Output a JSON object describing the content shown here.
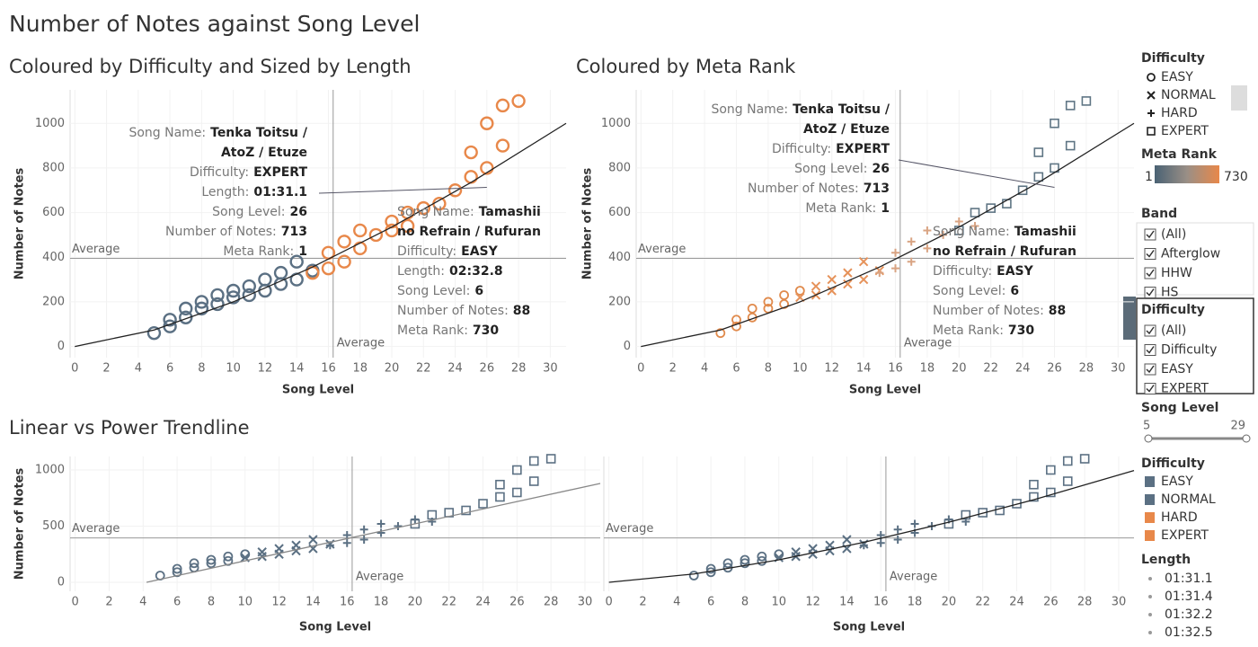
{
  "title": "Number of Notes against Song Level",
  "chart_data": [
    {
      "type": "scatter",
      "title": "Coloured by Difficulty and Sized by Length",
      "x_label": "Song Level",
      "y_label": "Number of Notes",
      "xlim": [
        -0.3,
        31
      ],
      "ylim": [
        -50,
        1150
      ],
      "xticks": [
        0,
        2,
        4,
        6,
        8,
        10,
        12,
        14,
        16,
        18,
        20,
        22,
        24,
        26,
        28,
        30
      ],
      "yticks": [
        0,
        200,
        400,
        600,
        800,
        1000
      ],
      "average": {
        "x": 16.3,
        "y": 395,
        "label": "Average"
      },
      "trendline": {
        "x": [
          0,
          5,
          10,
          15,
          20,
          25,
          31
        ],
        "y": [
          0,
          74,
          200,
          356,
          535,
          735,
          1000
        ]
      },
      "marker_style": "hollow-circle",
      "tooltips": [
        {
          "rows": [
            {
              "label": "Song Name:",
              "value": "Tenka Toitsu /"
            },
            {
              "value": "AtoZ / Etuze"
            },
            {
              "label": "Difficulty:",
              "value": "EXPERT"
            },
            {
              "label": "Length:",
              "value": "01:31.1"
            },
            {
              "label": "Song Level:",
              "value": 26
            },
            {
              "label": "Number of Notes:",
              "value": 713
            },
            {
              "label": "Meta Rank:",
              "value": 1
            }
          ]
        },
        {
          "rows": [
            {
              "label": "Song Name:",
              "value": "Tamashii"
            },
            {
              "value": "no Refrain / Rufuran"
            },
            {
              "label": "Difficulty:",
              "value": "EASY"
            },
            {
              "label": "Length:",
              "value": "02:32.8"
            },
            {
              "label": "Song Level:",
              "value": 6
            },
            {
              "label": "Number of Notes:",
              "value": 88
            },
            {
              "label": "Meta Rank:",
              "value": 730
            }
          ]
        }
      ],
      "series": [
        {
          "name": "EASY",
          "color": "#5b7083",
          "marker": "circle",
          "x": [
            5,
            6,
            6,
            7,
            7,
            8,
            8,
            9,
            9,
            10
          ],
          "values": [
            60,
            90,
            120,
            130,
            170,
            170,
            200,
            190,
            230,
            250
          ]
        },
        {
          "name": "NORMAL",
          "color": "#5b7083",
          "marker": "x",
          "x": [
            10,
            11,
            11,
            12,
            12,
            13,
            13,
            14,
            14,
            15
          ],
          "values": [
            220,
            230,
            270,
            250,
            300,
            280,
            330,
            300,
            380,
            340
          ]
        },
        {
          "name": "HARD",
          "color": "#e8884a",
          "marker": "plus",
          "x": [
            15,
            16,
            16,
            17,
            17,
            18,
            18,
            19,
            20,
            21
          ],
          "values": [
            330,
            350,
            420,
            380,
            470,
            440,
            520,
            500,
            560,
            540
          ]
        },
        {
          "name": "EXPERT",
          "color": "#e8884a",
          "marker": "square",
          "x": [
            20,
            21,
            22,
            23,
            24,
            25,
            25,
            26,
            26,
            27,
            27,
            28
          ],
          "values": [
            520,
            600,
            620,
            640,
            700,
            760,
            870,
            800,
            1000,
            900,
            1080,
            1100
          ]
        }
      ]
    },
    {
      "type": "scatter",
      "title": "Coloured by Meta Rank",
      "x_label": "Song Level",
      "y_label": "Number of Notes",
      "xlim": [
        -0.3,
        31
      ],
      "ylim": [
        -50,
        1150
      ],
      "xticks": [
        0,
        2,
        4,
        6,
        8,
        10,
        12,
        14,
        16,
        18,
        20,
        22,
        24,
        26,
        28,
        30
      ],
      "yticks": [
        0,
        200,
        400,
        600,
        800,
        1000
      ],
      "average": {
        "x": 16.3,
        "y": 395,
        "label": "Average"
      },
      "trendline": {
        "x": [
          0,
          5,
          10,
          15,
          20,
          25,
          31
        ],
        "y": [
          0,
          74,
          200,
          356,
          535,
          735,
          1000
        ]
      },
      "marker_style": "shape",
      "tooltips": [
        {
          "rows": [
            {
              "label": "Song Name:",
              "value": "Tenka Toitsu /"
            },
            {
              "value": "AtoZ / Etuze"
            },
            {
              "label": "Difficulty:",
              "value": "EXPERT"
            },
            {
              "label": "Song Level:",
              "value": 26
            },
            {
              "label": "Number of Notes:",
              "value": 713
            },
            {
              "label": "Meta Rank:",
              "value": 1
            }
          ]
        },
        {
          "rows": [
            {
              "label": "Song Name:",
              "value": "Tamashii"
            },
            {
              "value": "no Refrain / Rufuran"
            },
            {
              "label": "Difficulty:",
              "value": "EASY"
            },
            {
              "label": "Song Level:",
              "value": 6
            },
            {
              "label": "Number of Notes:",
              "value": 88
            },
            {
              "label": "Meta Rank:",
              "value": 730
            }
          ]
        }
      ],
      "series": [
        {
          "name": "EASY",
          "color": "#e08a4c",
          "marker": "circle",
          "x": [
            5,
            6,
            6,
            7,
            7,
            8,
            8,
            9,
            9,
            10
          ],
          "values": [
            60,
            90,
            120,
            130,
            170,
            170,
            200,
            190,
            230,
            250
          ]
        },
        {
          "name": "NORMAL",
          "color": "#e6925a",
          "marker": "x",
          "x": [
            10,
            11,
            11,
            12,
            12,
            13,
            13,
            14,
            14,
            15
          ],
          "values": [
            220,
            230,
            270,
            250,
            300,
            280,
            330,
            300,
            380,
            340
          ]
        },
        {
          "name": "HARD",
          "color": "#d9a483",
          "marker": "plus",
          "x": [
            15,
            16,
            16,
            17,
            17,
            18,
            18,
            19,
            20,
            21
          ],
          "values": [
            330,
            350,
            420,
            380,
            470,
            440,
            520,
            500,
            560,
            540
          ]
        },
        {
          "name": "EXPERT",
          "color": "#5f7584",
          "marker": "square",
          "x": [
            20,
            21,
            22,
            23,
            24,
            25,
            25,
            26,
            26,
            27,
            27,
            28
          ],
          "values": [
            520,
            600,
            620,
            640,
            700,
            760,
            870,
            800,
            1000,
            900,
            1080,
            1100
          ]
        }
      ]
    },
    {
      "type": "scatter",
      "title": "Linear vs Power Trendline",
      "x_label": "Song Level",
      "y_label": "Number of Notes",
      "xlim": [
        -0.3,
        30.9
      ],
      "ylim": [
        -80,
        1120
      ],
      "xticks": [
        0,
        2,
        4,
        6,
        8,
        10,
        12,
        14,
        16,
        18,
        20,
        22,
        24,
        26,
        28,
        30
      ],
      "yticks": [
        0,
        500,
        1000
      ],
      "average": {
        "x": 16.3,
        "y": 395,
        "label": "Average"
      },
      "trendline": {
        "x": [
          4.2,
          30.9
        ],
        "y": [
          0,
          880
        ]
      },
      "marker_style": "shape",
      "series": [
        {
          "color": "#5b7083",
          "marker": "circle",
          "x": [
            5,
            6,
            6,
            7,
            7,
            8,
            8,
            9,
            9,
            10
          ],
          "values": [
            60,
            90,
            120,
            130,
            170,
            170,
            200,
            190,
            230,
            250
          ]
        },
        {
          "color": "#5b7083",
          "marker": "x",
          "x": [
            10,
            11,
            11,
            12,
            12,
            13,
            13,
            14,
            14,
            15
          ],
          "values": [
            220,
            230,
            270,
            250,
            300,
            280,
            330,
            300,
            380,
            340
          ]
        },
        {
          "color": "#5b7083",
          "marker": "plus",
          "x": [
            15,
            16,
            16,
            17,
            17,
            18,
            18,
            19,
            20,
            21
          ],
          "values": [
            330,
            350,
            420,
            380,
            470,
            440,
            520,
            500,
            560,
            540
          ]
        },
        {
          "color": "#5b7083",
          "marker": "square",
          "x": [
            20,
            21,
            22,
            23,
            24,
            25,
            25,
            26,
            26,
            27,
            27,
            28
          ],
          "values": [
            520,
            600,
            620,
            640,
            700,
            760,
            870,
            800,
            1000,
            900,
            1080,
            1100
          ]
        }
      ]
    },
    {
      "type": "scatter",
      "x_label": "Song Level",
      "xlim": [
        -0.3,
        30.9
      ],
      "ylim": [
        -80,
        1120
      ],
      "xticks": [
        0,
        2,
        4,
        6,
        8,
        10,
        12,
        14,
        16,
        18,
        20,
        22,
        24,
        26,
        28,
        30
      ],
      "average": {
        "x": 16.3,
        "y": 395,
        "label": "Average"
      },
      "trendline": {
        "x": [
          0,
          5,
          10,
          15,
          20,
          25,
          30.9
        ],
        "y": [
          0,
          74,
          200,
          356,
          535,
          735,
          995
        ]
      },
      "marker_style": "shape",
      "series": [
        {
          "color": "#5b7083",
          "marker": "circle",
          "x": [
            5,
            6,
            6,
            7,
            7,
            8,
            8,
            9,
            9,
            10
          ],
          "values": [
            60,
            90,
            120,
            130,
            170,
            170,
            200,
            190,
            230,
            250
          ]
        },
        {
          "color": "#5b7083",
          "marker": "x",
          "x": [
            10,
            11,
            11,
            12,
            12,
            13,
            13,
            14,
            14,
            15
          ],
          "values": [
            220,
            230,
            270,
            250,
            300,
            280,
            330,
            300,
            380,
            340
          ]
        },
        {
          "color": "#5b7083",
          "marker": "plus",
          "x": [
            15,
            16,
            16,
            17,
            17,
            18,
            18,
            19,
            20,
            21
          ],
          "values": [
            330,
            350,
            420,
            380,
            470,
            440,
            520,
            500,
            560,
            540
          ]
        },
        {
          "color": "#5b7083",
          "marker": "square",
          "x": [
            20,
            21,
            22,
            23,
            24,
            25,
            25,
            26,
            26,
            27,
            27,
            28
          ],
          "values": [
            520,
            600,
            620,
            640,
            700,
            760,
            870,
            800,
            1000,
            900,
            1080,
            1100
          ]
        }
      ]
    }
  ],
  "sidebar": {
    "shape_legend_title": "Difficulty",
    "meta_rank": {
      "title": "Meta Rank",
      "min": 1,
      "max": 730
    },
    "band_filter": {
      "title": "Band",
      "items": [
        "(All)",
        "Afterglow",
        "HHW",
        "HS"
      ]
    },
    "difficulty_filter": {
      "title": "Difficulty",
      "items": [
        "(All)",
        "Difficulty",
        "EASY",
        "EXPERT"
      ]
    },
    "song_level": {
      "title": "Song Level",
      "min": 5,
      "max": 29
    },
    "color_legend_title": "Difficulty",
    "length_legend": {
      "title": "Length",
      "items": [
        "01:31.1",
        "01:31.4",
        "01:32.2",
        "01:32.5"
      ]
    }
  }
}
